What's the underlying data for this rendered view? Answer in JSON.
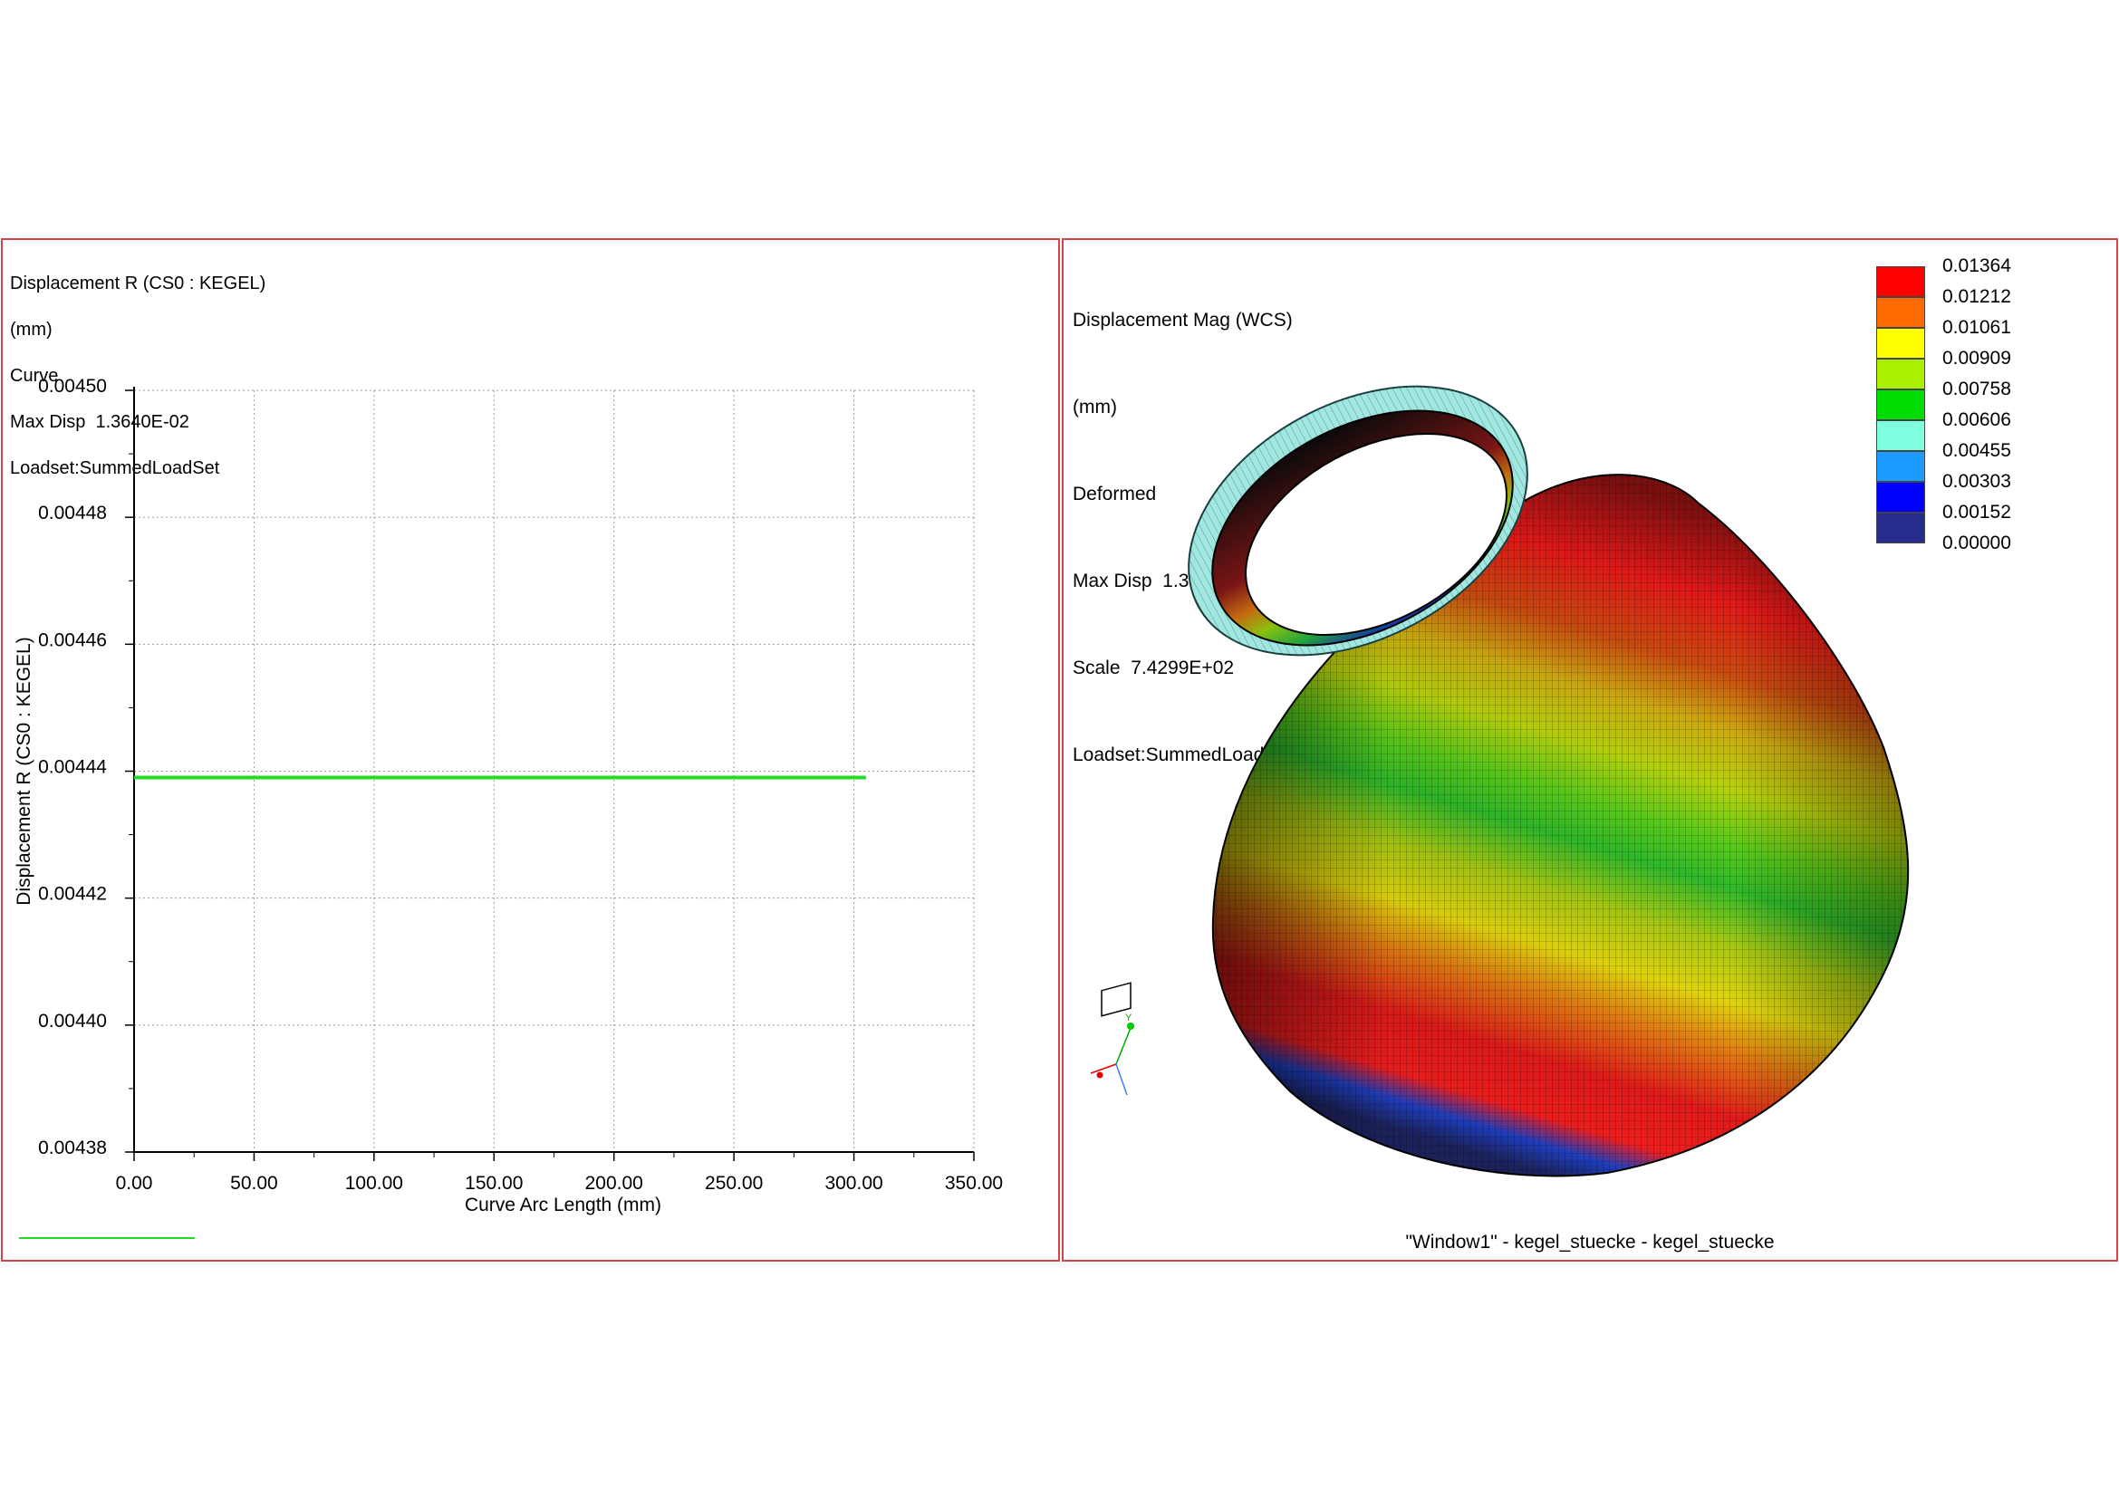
{
  "left": {
    "header": [
      "Displacement R (CS0 : KEGEL)",
      "(mm)",
      "Curve",
      "Max Disp  1.3640E-02",
      "Loadset:SummedLoadSet"
    ],
    "chart_data": {
      "type": "line",
      "xlabel": "Curve Arc Length (mm)",
      "ylabel": "Displacement R (CS0 : KEGEL)",
      "xlim": [
        0,
        350
      ],
      "ylim": [
        0.00438,
        0.0045
      ],
      "x_ticks": [
        "0.00",
        "50.00",
        "100.00",
        "150.00",
        "200.00",
        "250.00",
        "300.00",
        "350.00"
      ],
      "y_ticks": [
        "0.00438",
        "0.00440",
        "0.00442",
        "0.00444",
        "0.00446",
        "0.00448",
        "0.00450"
      ],
      "grid": true,
      "series": [
        {
          "color": "#22dd22",
          "x": [
            0,
            305
          ],
          "y": [
            0.004439,
            0.004439
          ]
        }
      ]
    }
  },
  "right": {
    "header": [
      "Displacement Mag (WCS)",
      "(mm)",
      "Deformed",
      "Max Disp  1.3640E-02",
      "Scale  7.4299E+02",
      "Loadset:SummedLoadSet"
    ],
    "legend": {
      "values": [
        "0.01364",
        "0.01212",
        "0.01061",
        "0.00909",
        "0.00758",
        "0.00606",
        "0.00455",
        "0.00303",
        "0.00152",
        "0.00000"
      ],
      "colors": [
        "#ff0000",
        "#ff6a00",
        "#ffff00",
        "#aaee00",
        "#00dd00",
        "#7fffdf",
        "#1e9bff",
        "#0000ff",
        "#252c8c"
      ]
    },
    "triad_label": "Y",
    "caption": "\"Window1\" - kegel_stuecke - kegel_stuecke"
  }
}
